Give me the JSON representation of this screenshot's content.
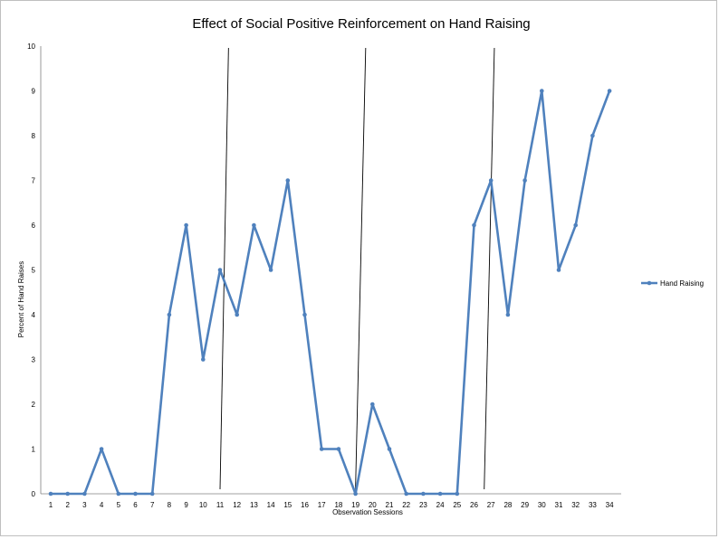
{
  "chart_data": {
    "type": "line",
    "title": "Effect of Social Positive Reinforcement on Hand Raising",
    "xlabel": "Observation Sessions",
    "ylabel": "Percent of Hand Raises",
    "categories": [
      "1",
      "2",
      "3",
      "4",
      "5",
      "6",
      "7",
      "8",
      "9",
      "10",
      "11",
      "12",
      "13",
      "14",
      "15",
      "16",
      "17",
      "18",
      "19",
      "20",
      "21",
      "22",
      "23",
      "24",
      "25",
      "26",
      "27",
      "28",
      "29",
      "30",
      "31",
      "32",
      "33",
      "34"
    ],
    "series": [
      {
        "name": "Hand Raising",
        "color": "#4f81bd",
        "values": [
          0,
          0,
          0,
          1,
          0,
          0,
          0,
          4,
          6,
          3,
          5,
          4,
          6,
          5,
          7,
          4,
          1,
          1,
          0,
          2,
          1,
          0,
          0,
          0,
          0,
          6,
          7,
          4,
          7,
          9,
          5,
          6,
          8,
          9
        ]
      }
    ],
    "ylim": [
      0,
      10
    ],
    "yticks": [
      0,
      1,
      2,
      3,
      4,
      5,
      6,
      7,
      8,
      9,
      10
    ],
    "ytick_labels": [
      "0",
      "1",
      "2",
      "3",
      "4",
      "5",
      "6",
      "7",
      "8",
      "9",
      "10"
    ],
    "phase_change_lines": [
      {
        "between": [
          "11",
          "12"
        ],
        "top_x": 11.5,
        "bottom_x": 11
      },
      {
        "between": [
          "19",
          "20"
        ],
        "top_x": 19.6,
        "bottom_x": 19
      },
      {
        "between": [
          "27",
          "28"
        ],
        "top_x": 27.2,
        "bottom_x": 26.6
      }
    ],
    "grid": false,
    "legend": {
      "position": "right",
      "entries": [
        "Hand Raising"
      ]
    }
  }
}
